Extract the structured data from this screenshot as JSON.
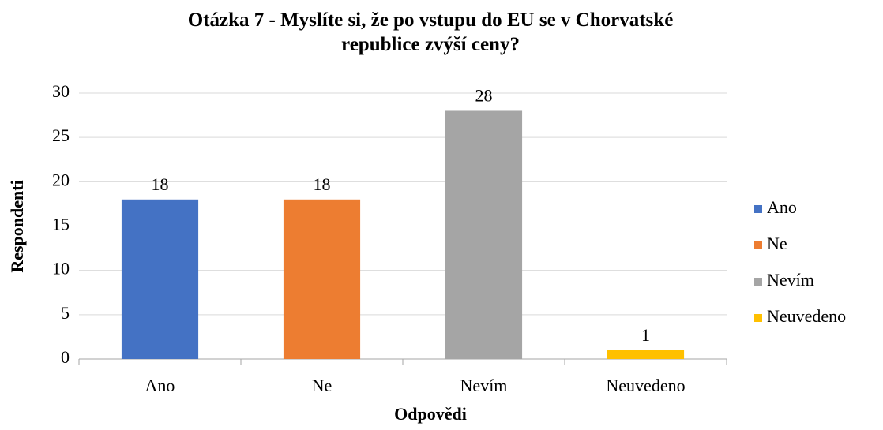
{
  "chart_data": {
    "type": "bar",
    "title": "Otázka 7 - Myslíte si, že po vstupu do EU se v Chorvatské republice zvýší ceny?",
    "x_label": "Odpovědi",
    "y_label": "Respondenti",
    "categories": [
      "Ano",
      "Ne",
      "Nevím",
      "Neuvedeno"
    ],
    "values": [
      18,
      18,
      28,
      1
    ],
    "colors": [
      "#4472c4",
      "#ed7d31",
      "#a5a5a5",
      "#ffc000"
    ],
    "ylim": [
      0,
      30
    ],
    "yticks": [
      0,
      5,
      10,
      15,
      20,
      25,
      30
    ],
    "grid": true,
    "legend": "right"
  }
}
